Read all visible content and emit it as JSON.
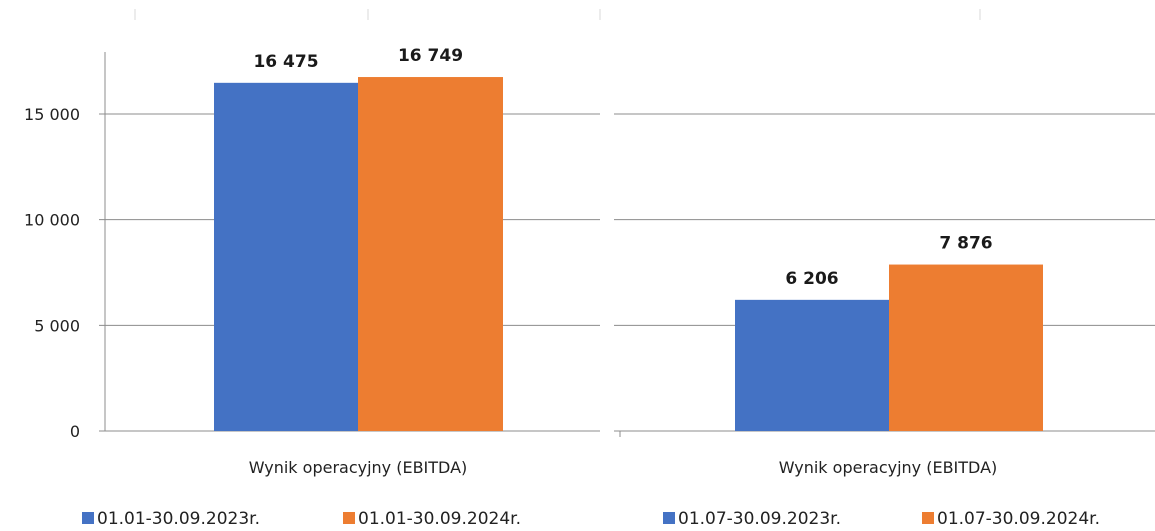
{
  "chart_data": [
    {
      "type": "bar",
      "categories": [
        "Wynik operacyjny  (EBITDA)"
      ],
      "series": [
        {
          "name": "01.01-30.09.2023r.",
          "values": [
            16475
          ],
          "labels": [
            "16 475"
          ],
          "color": "#4472C4"
        },
        {
          "name": "01.01-30.09.2024r.",
          "values": [
            16749
          ],
          "labels": [
            "16 749"
          ],
          "color": "#ED7D31"
        }
      ],
      "yticks": [
        0,
        5000,
        10000,
        15000
      ],
      "ytick_labels": [
        "0",
        "5 000",
        "10 000",
        "15 000"
      ],
      "ylim": [
        0,
        20000
      ],
      "grid": true,
      "legend": "bottom"
    },
    {
      "type": "bar",
      "categories": [
        "Wynik operacyjny  (EBITDA)"
      ],
      "series": [
        {
          "name": "01.07-30.09.2023r.",
          "values": [
            6206
          ],
          "labels": [
            "6 206"
          ],
          "color": "#4472C4"
        },
        {
          "name": "01.07-30.09.2024r.",
          "values": [
            7876
          ],
          "labels": [
            "7 876"
          ],
          "color": "#ED7D31"
        }
      ],
      "ylim": [
        0,
        20000
      ],
      "grid": true,
      "legend": "bottom"
    }
  ]
}
